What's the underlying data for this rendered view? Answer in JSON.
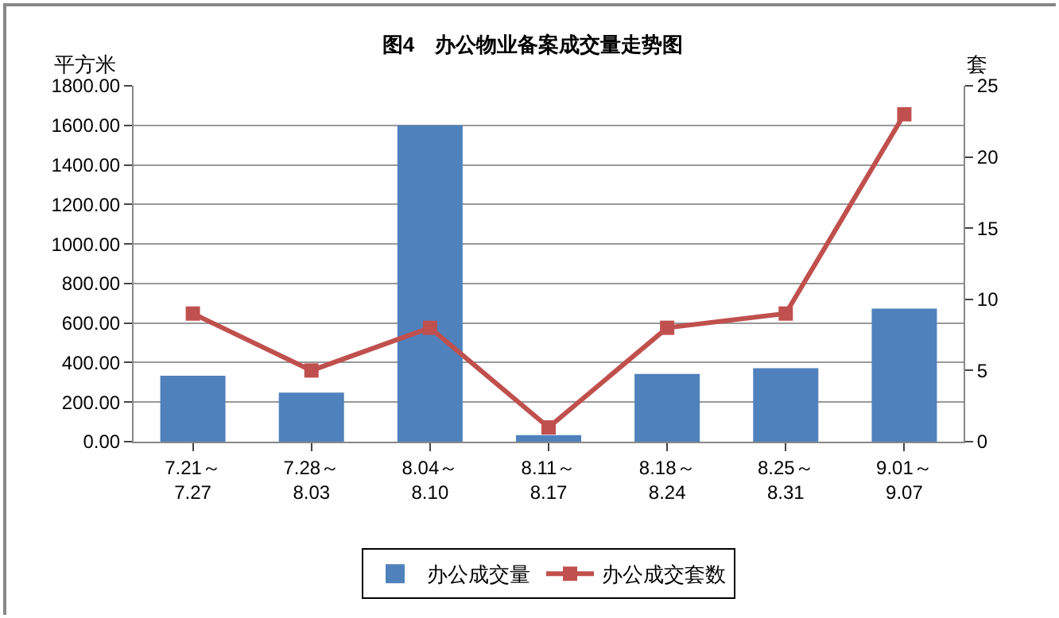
{
  "chart_data": {
    "type": "bar",
    "title": "图4　办公物业备案成交量走势图",
    "ylabel": "平方米",
    "y2label": "套",
    "categories": [
      "7.21～\n7.27",
      "7.28～\n8.03",
      "8.04～\n8.10",
      "8.11～\n8.17",
      "8.18～\n8.24",
      "8.25～\n8.31",
      "9.01～\n9.07"
    ],
    "series": [
      {
        "name": "办公成交量",
        "color": "#4f81bd",
        "values": [
          333,
          248,
          1600,
          33,
          343,
          372,
          673
        ]
      },
      {
        "name": "办公成交套数",
        "type": "line",
        "axis": "y2",
        "color": "#c0504d",
        "marker": "square",
        "values": [
          9,
          5,
          8,
          1,
          8,
          9,
          23
        ]
      }
    ],
    "ylim": [
      0,
      1800
    ],
    "yticks": [
      {
        "value": 0,
        "label": "0.00"
      },
      {
        "value": 200,
        "label": "200.00"
      },
      {
        "value": 400,
        "label": "400.00"
      },
      {
        "value": 600,
        "label": "600.00"
      },
      {
        "value": 800,
        "label": "800.00"
      },
      {
        "value": 1000,
        "label": "1000.00"
      },
      {
        "value": 1200,
        "label": "1200.00"
      },
      {
        "value": 1400,
        "label": "1400.00"
      },
      {
        "value": 1600,
        "label": "1600.00"
      },
      {
        "value": 1800,
        "label": "1800.00"
      }
    ],
    "y2lim": [
      0,
      25
    ],
    "y2ticks": [
      0,
      5,
      10,
      15,
      20,
      25
    ],
    "grid": "y",
    "legend": "bottom"
  }
}
